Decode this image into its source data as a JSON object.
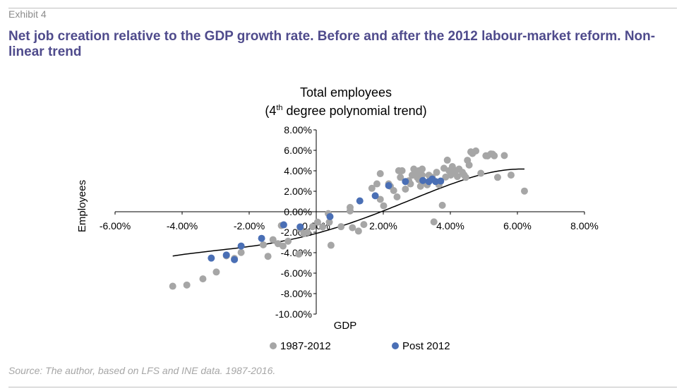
{
  "exhibit_label": "Exhibit 4",
  "title": "Net job creation relative to the GDP growth rate. Before and after the 2012 labour-market reform. Non-linear trend",
  "source": "Source: The author, based on LFS and INE data. 1987-2016.",
  "colors": {
    "title": "#4f4b8c",
    "series1": "#a6a6a6",
    "series2": "#4a6fb5",
    "trend": "#000000"
  },
  "chart_data": {
    "type": "scatter",
    "title_line1": "Total employees",
    "title_line2_pre": "(4",
    "title_line2_sup": "th",
    "title_line2_post": " degree polynomial trend)",
    "xlabel": "GDP",
    "ylabel": "Employees",
    "xlim": [
      -0.06,
      0.08
    ],
    "ylim": [
      -0.1,
      0.08
    ],
    "x_ticks": [
      -0.06,
      -0.04,
      -0.02,
      0.0,
      0.02,
      0.04,
      0.06,
      0.08
    ],
    "x_tick_labels": [
      "-6.00%",
      "-4.00%",
      "-2.00%",
      "0.00%",
      "2.00%",
      "4.00%",
      "6.00%",
      "8.00%"
    ],
    "y_ticks": [
      0.08,
      0.06,
      0.04,
      0.02,
      0.0,
      -0.02,
      -0.04,
      -0.06,
      -0.08,
      -0.1
    ],
    "y_tick_labels": [
      "8.00%",
      "6.00%",
      "4.00%",
      "2.00%",
      "0.00%",
      "-2.00%",
      "-4.00%",
      "-6.00%",
      "-8.00%",
      "-10.00%"
    ],
    "legend_position": "bottom",
    "grid": false,
    "series": [
      {
        "name": "1987-2012",
        "points": [
          [
            -0.0428,
            -0.0728
          ],
          [
            -0.0386,
            -0.0716
          ],
          [
            -0.0338,
            -0.0656
          ],
          [
            -0.0298,
            -0.0589
          ],
          [
            -0.0268,
            -0.0431
          ],
          [
            -0.0244,
            -0.0456
          ],
          [
            -0.0224,
            -0.0398
          ],
          [
            -0.0158,
            -0.0323
          ],
          [
            -0.0144,
            -0.0436
          ],
          [
            -0.0129,
            -0.0273
          ],
          [
            -0.0114,
            -0.0312
          ],
          [
            -0.0099,
            -0.0335
          ],
          [
            -0.0084,
            -0.0288
          ],
          [
            -0.0104,
            -0.0135
          ],
          [
            -0.0047,
            -0.0167
          ],
          [
            -0.0052,
            -0.0414
          ],
          [
            -0.0026,
            -0.0201
          ],
          [
            -0.0011,
            -0.0146
          ],
          [
            0.0004,
            -0.0102
          ],
          [
            0.0019,
            -0.0149
          ],
          [
            0.0039,
            -0.0102
          ],
          [
            0.0044,
            -0.0328
          ],
          [
            0.0074,
            -0.0146
          ],
          [
            0.0101,
            0.0008
          ],
          [
            0.0101,
            0.0042
          ],
          [
            0.0108,
            -0.0156
          ],
          [
            0.0126,
            -0.0189
          ],
          [
            0.0142,
            -0.0125
          ],
          [
            0.0166,
            0.0229
          ],
          [
            0.0181,
            0.0272
          ],
          [
            0.0191,
            0.0121
          ],
          [
            0.0191,
            0.0372
          ],
          [
            0.0216,
            0.0272
          ],
          [
            0.0221,
            0.0249
          ],
          [
            0.0231,
            0.0207
          ],
          [
            0.0241,
            0.0145
          ],
          [
            0.0246,
            0.0401
          ],
          [
            0.0251,
            0.0336
          ],
          [
            0.0256,
            0.0401
          ],
          [
            0.0266,
            0.0221
          ],
          [
            0.0276,
            0.0303
          ],
          [
            0.0286,
            0.0357
          ],
          [
            0.0291,
            0.0417
          ],
          [
            0.0299,
            0.0385
          ],
          [
            0.0306,
            0.0313
          ],
          [
            0.0311,
            0.0249
          ],
          [
            0.0316,
            0.0357
          ],
          [
            0.0326,
            0.0286
          ],
          [
            0.0331,
            0.0263
          ],
          [
            0.0341,
            0.0313
          ],
          [
            0.0346,
            0.0336
          ],
          [
            0.0351,
            -0.0099
          ],
          [
            0.0359,
            0.0385
          ],
          [
            0.0366,
            0.0263
          ],
          [
            0.0371,
            0.0296
          ],
          [
            0.0381,
            0.0425
          ],
          [
            0.0386,
            0.0339
          ],
          [
            0.0391,
            0.0504
          ],
          [
            0.0396,
            0.0401
          ],
          [
            0.0401,
            0.0358
          ],
          [
            0.0406,
            0.0441
          ],
          [
            0.0411,
            0.0385
          ],
          [
            0.0416,
            0.0401
          ],
          [
            0.0421,
            0.0344
          ],
          [
            0.0426,
            0.0417
          ],
          [
            0.0436,
            0.0385
          ],
          [
            0.0441,
            0.0359
          ],
          [
            0.0446,
            0.0336
          ],
          [
            0.0451,
            0.0503
          ],
          [
            0.0456,
            0.0456
          ],
          [
            0.0461,
            0.0585
          ],
          [
            0.0466,
            0.0569
          ],
          [
            0.0476,
            0.0594
          ],
          [
            0.0491,
            0.0376
          ],
          [
            0.0506,
            0.0547
          ],
          [
            0.0511,
            0.0546
          ],
          [
            0.0521,
            0.0565
          ],
          [
            0.0526,
            0.0563
          ],
          [
            0.0531,
            0.0547
          ],
          [
            0.0541,
            0.0336
          ],
          [
            0.0561,
            0.0549
          ],
          [
            0.0581,
            0.0358
          ],
          [
            0.0621,
            0.0202
          ],
          [
            0.0376,
            0.0063
          ],
          [
            0.0201,
            0.0058
          ],
          [
            0.0036,
            -0.0018
          ],
          [
            -0.0037,
            -0.0214
          ],
          [
            0.0306,
            0.0401
          ],
          [
            0.0316,
            0.0417
          ],
          [
            0.0336,
            0.0357
          ],
          [
            0.0301,
            0.0336
          ],
          [
            0.0281,
            0.0272
          ]
        ]
      },
      {
        "name": "Post 2012",
        "points": [
          [
            -0.0313,
            -0.0453
          ],
          [
            -0.0268,
            -0.0423
          ],
          [
            -0.0244,
            -0.0468
          ],
          [
            -0.0224,
            -0.0335
          ],
          [
            -0.0163,
            -0.026
          ],
          [
            -0.0097,
            -0.0128
          ],
          [
            -0.0048,
            -0.0148
          ],
          [
            0.0041,
            -0.0048
          ],
          [
            0.013,
            0.0106
          ],
          [
            0.0176,
            0.0156
          ],
          [
            0.0216,
            0.0255
          ],
          [
            0.0266,
            0.0295
          ],
          [
            0.0318,
            0.0305
          ],
          [
            0.0336,
            0.0295
          ],
          [
            0.0346,
            0.032
          ],
          [
            0.0356,
            0.0295
          ],
          [
            0.0371,
            0.03
          ]
        ]
      }
    ],
    "trend_coefficients": [
      -0.0212,
      0.874,
      12.5,
      -10.0,
      -2500.0
    ],
    "trend_range": [
      -0.0428,
      0.0621
    ]
  }
}
